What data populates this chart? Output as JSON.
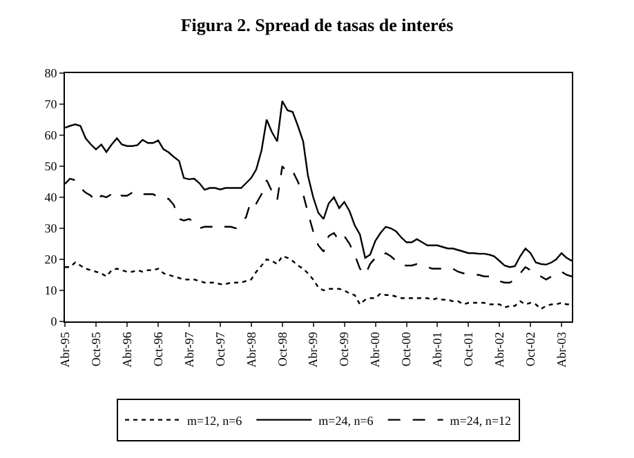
{
  "chart_data": {
    "type": "line",
    "title": "Figura 2. Spread de tasas de interés",
    "x": [
      "1995-04",
      "1995-05",
      "1995-06",
      "1995-07",
      "1995-08",
      "1995-09",
      "1995-10",
      "1995-11",
      "1995-12",
      "1996-01",
      "1996-02",
      "1996-03",
      "1996-04",
      "1996-05",
      "1996-06",
      "1996-07",
      "1996-08",
      "1996-09",
      "1996-10",
      "1996-11",
      "1996-12",
      "1997-01",
      "1997-02",
      "1997-03",
      "1997-04",
      "1997-05",
      "1997-06",
      "1997-07",
      "1997-08",
      "1997-09",
      "1997-10",
      "1997-11",
      "1997-12",
      "1998-01",
      "1998-02",
      "1998-03",
      "1998-04",
      "1998-05",
      "1998-06",
      "1998-07",
      "1998-08",
      "1998-09",
      "1998-10",
      "1998-11",
      "1998-12",
      "1999-01",
      "1999-02",
      "1999-03",
      "1999-04",
      "1999-05",
      "1999-06",
      "1999-07",
      "1999-08",
      "1999-09",
      "1999-10",
      "1999-11",
      "1999-12",
      "2000-01",
      "2000-02",
      "2000-03",
      "2000-04",
      "2000-05",
      "2000-06",
      "2000-07",
      "2000-08",
      "2000-09",
      "2000-10",
      "2000-11",
      "2000-12",
      "2001-01",
      "2001-02",
      "2001-03",
      "2001-04",
      "2001-05",
      "2001-06",
      "2001-07",
      "2001-08",
      "2001-09",
      "2001-10",
      "2001-11",
      "2001-12",
      "2002-01",
      "2002-02",
      "2002-03",
      "2002-04",
      "2002-05",
      "2002-06",
      "2002-07",
      "2002-08",
      "2002-09",
      "2002-10",
      "2002-11",
      "2002-12",
      "2003-01",
      "2003-02",
      "2003-03",
      "2003-04",
      "2003-05",
      "2003-06"
    ],
    "series": [
      {
        "name": "m=12, n=6",
        "color": "#000000",
        "line_style": "dotted",
        "values": [
          17.5,
          17.5,
          19,
          18,
          17,
          16.5,
          16,
          15.5,
          14.5,
          16.5,
          17,
          16.5,
          16,
          16,
          16.5,
          16,
          16.5,
          16.5,
          17,
          15.5,
          15,
          14.5,
          14,
          13.5,
          13.5,
          13.5,
          13,
          12.5,
          12.5,
          12.5,
          12,
          12,
          12.5,
          12.5,
          12.5,
          13,
          13.5,
          16,
          18,
          20,
          19.5,
          18.5,
          21,
          20.5,
          19.5,
          18,
          17,
          15.5,
          13.5,
          11,
          10,
          10.5,
          10.5,
          10.5,
          10,
          9,
          8.5,
          5.5,
          7,
          7.5,
          7.5,
          9,
          8.5,
          8.5,
          8,
          7.5,
          7.5,
          7.5,
          7.5,
          7.5,
          7.5,
          7,
          7.5,
          7,
          7,
          6.5,
          6.5,
          5.5,
          6,
          6,
          6,
          6,
          5.5,
          5.5,
          5.5,
          4.5,
          5,
          5,
          6.5,
          5.5,
          6,
          5.5,
          4,
          5,
          5.5,
          5.5,
          6,
          5.5,
          5.5
        ]
      },
      {
        "name": "m=24, n=6",
        "color": "#000000",
        "line_style": "solid",
        "values": [
          62.4,
          63,
          63.5,
          63,
          59,
          57,
          55.4,
          57,
          54.6,
          57,
          59,
          57,
          56.5,
          56.5,
          56.8,
          58.5,
          57.5,
          57.5,
          58.3,
          55.5,
          54.5,
          53,
          51.7,
          46.2,
          45.8,
          46,
          44.5,
          42.4,
          43,
          43,
          42.5,
          43,
          43,
          43,
          43,
          44.5,
          46.2,
          49,
          55.1,
          65,
          61,
          58,
          71,
          68,
          67.5,
          63,
          58,
          47,
          40,
          35,
          33,
          38,
          40,
          36.5,
          38.5,
          35.5,
          31,
          28,
          20.5,
          21.5,
          26,
          28.5,
          30.5,
          30,
          29,
          27,
          25.5,
          25.5,
          26.5,
          25.5,
          24.5,
          24.5,
          24.5,
          24,
          23.5,
          23.5,
          23,
          22.5,
          22,
          22,
          21.8,
          21.8,
          21.5,
          21,
          19.5,
          18,
          17.5,
          17.8,
          21,
          23.5,
          22,
          19,
          18.5,
          18.3,
          19,
          20,
          22,
          20.5,
          19.5
        ]
      },
      {
        "name": "m=24, n=12",
        "color": "#000000",
        "line_style": "dashed",
        "values": [
          44.3,
          46,
          45.5,
          43,
          41.5,
          40.5,
          38.5,
          40.5,
          40,
          41,
          42,
          40.5,
          40.5,
          41.5,
          42,
          41,
          41,
          41,
          40,
          39.5,
          39.5,
          37.5,
          33,
          32.5,
          33,
          32,
          30,
          30.5,
          30.5,
          30.5,
          31,
          30.5,
          30.5,
          30,
          32,
          33.5,
          39,
          38,
          41,
          45.5,
          42,
          39,
          50,
          48,
          48.5,
          45,
          41,
          35,
          29,
          24.5,
          22.5,
          27.5,
          28.5,
          26,
          27.5,
          25,
          21.5,
          17,
          15,
          18.5,
          20.5,
          20.5,
          22,
          21,
          19.5,
          18,
          18,
          18,
          18.5,
          18,
          17.5,
          17,
          17,
          17,
          17.5,
          17,
          16,
          15.5,
          15,
          15,
          15,
          14.5,
          14.5,
          13.5,
          13,
          12.5,
          12.5,
          13.5,
          15.5,
          17.5,
          16.5,
          15,
          14.5,
          13.5,
          14.5,
          15,
          16,
          15,
          14.5
        ]
      }
    ],
    "xlim": [
      "1995-04",
      "2003-06"
    ],
    "xticks": [
      {
        "value": "1995-04",
        "label": "Abr-95"
      },
      {
        "value": "1995-10",
        "label": "Oct-95"
      },
      {
        "value": "1996-04",
        "label": "Abr-96"
      },
      {
        "value": "1996-10",
        "label": "Oct-96"
      },
      {
        "value": "1997-04",
        "label": "Abr-97"
      },
      {
        "value": "1997-10",
        "label": "Oct-97"
      },
      {
        "value": "1998-04",
        "label": "Abr-98"
      },
      {
        "value": "1998-10",
        "label": "Oct-98"
      },
      {
        "value": "1999-04",
        "label": "Abr-99"
      },
      {
        "value": "1999-10",
        "label": "Oct-99"
      },
      {
        "value": "2000-04",
        "label": "Abr-00"
      },
      {
        "value": "2000-10",
        "label": "Oct-00"
      },
      {
        "value": "2001-04",
        "label": "Abr-01"
      },
      {
        "value": "2001-10",
        "label": "Oct-01"
      },
      {
        "value": "2002-04",
        "label": "Abr-02"
      },
      {
        "value": "2002-10",
        "label": "Oct-02"
      },
      {
        "value": "2003-04",
        "label": "Abr-03"
      }
    ],
    "ylim": [
      0,
      80
    ],
    "yticks": [
      0,
      10,
      20,
      30,
      40,
      50,
      60,
      70,
      80
    ],
    "legend": "bottom",
    "marker": "none"
  }
}
